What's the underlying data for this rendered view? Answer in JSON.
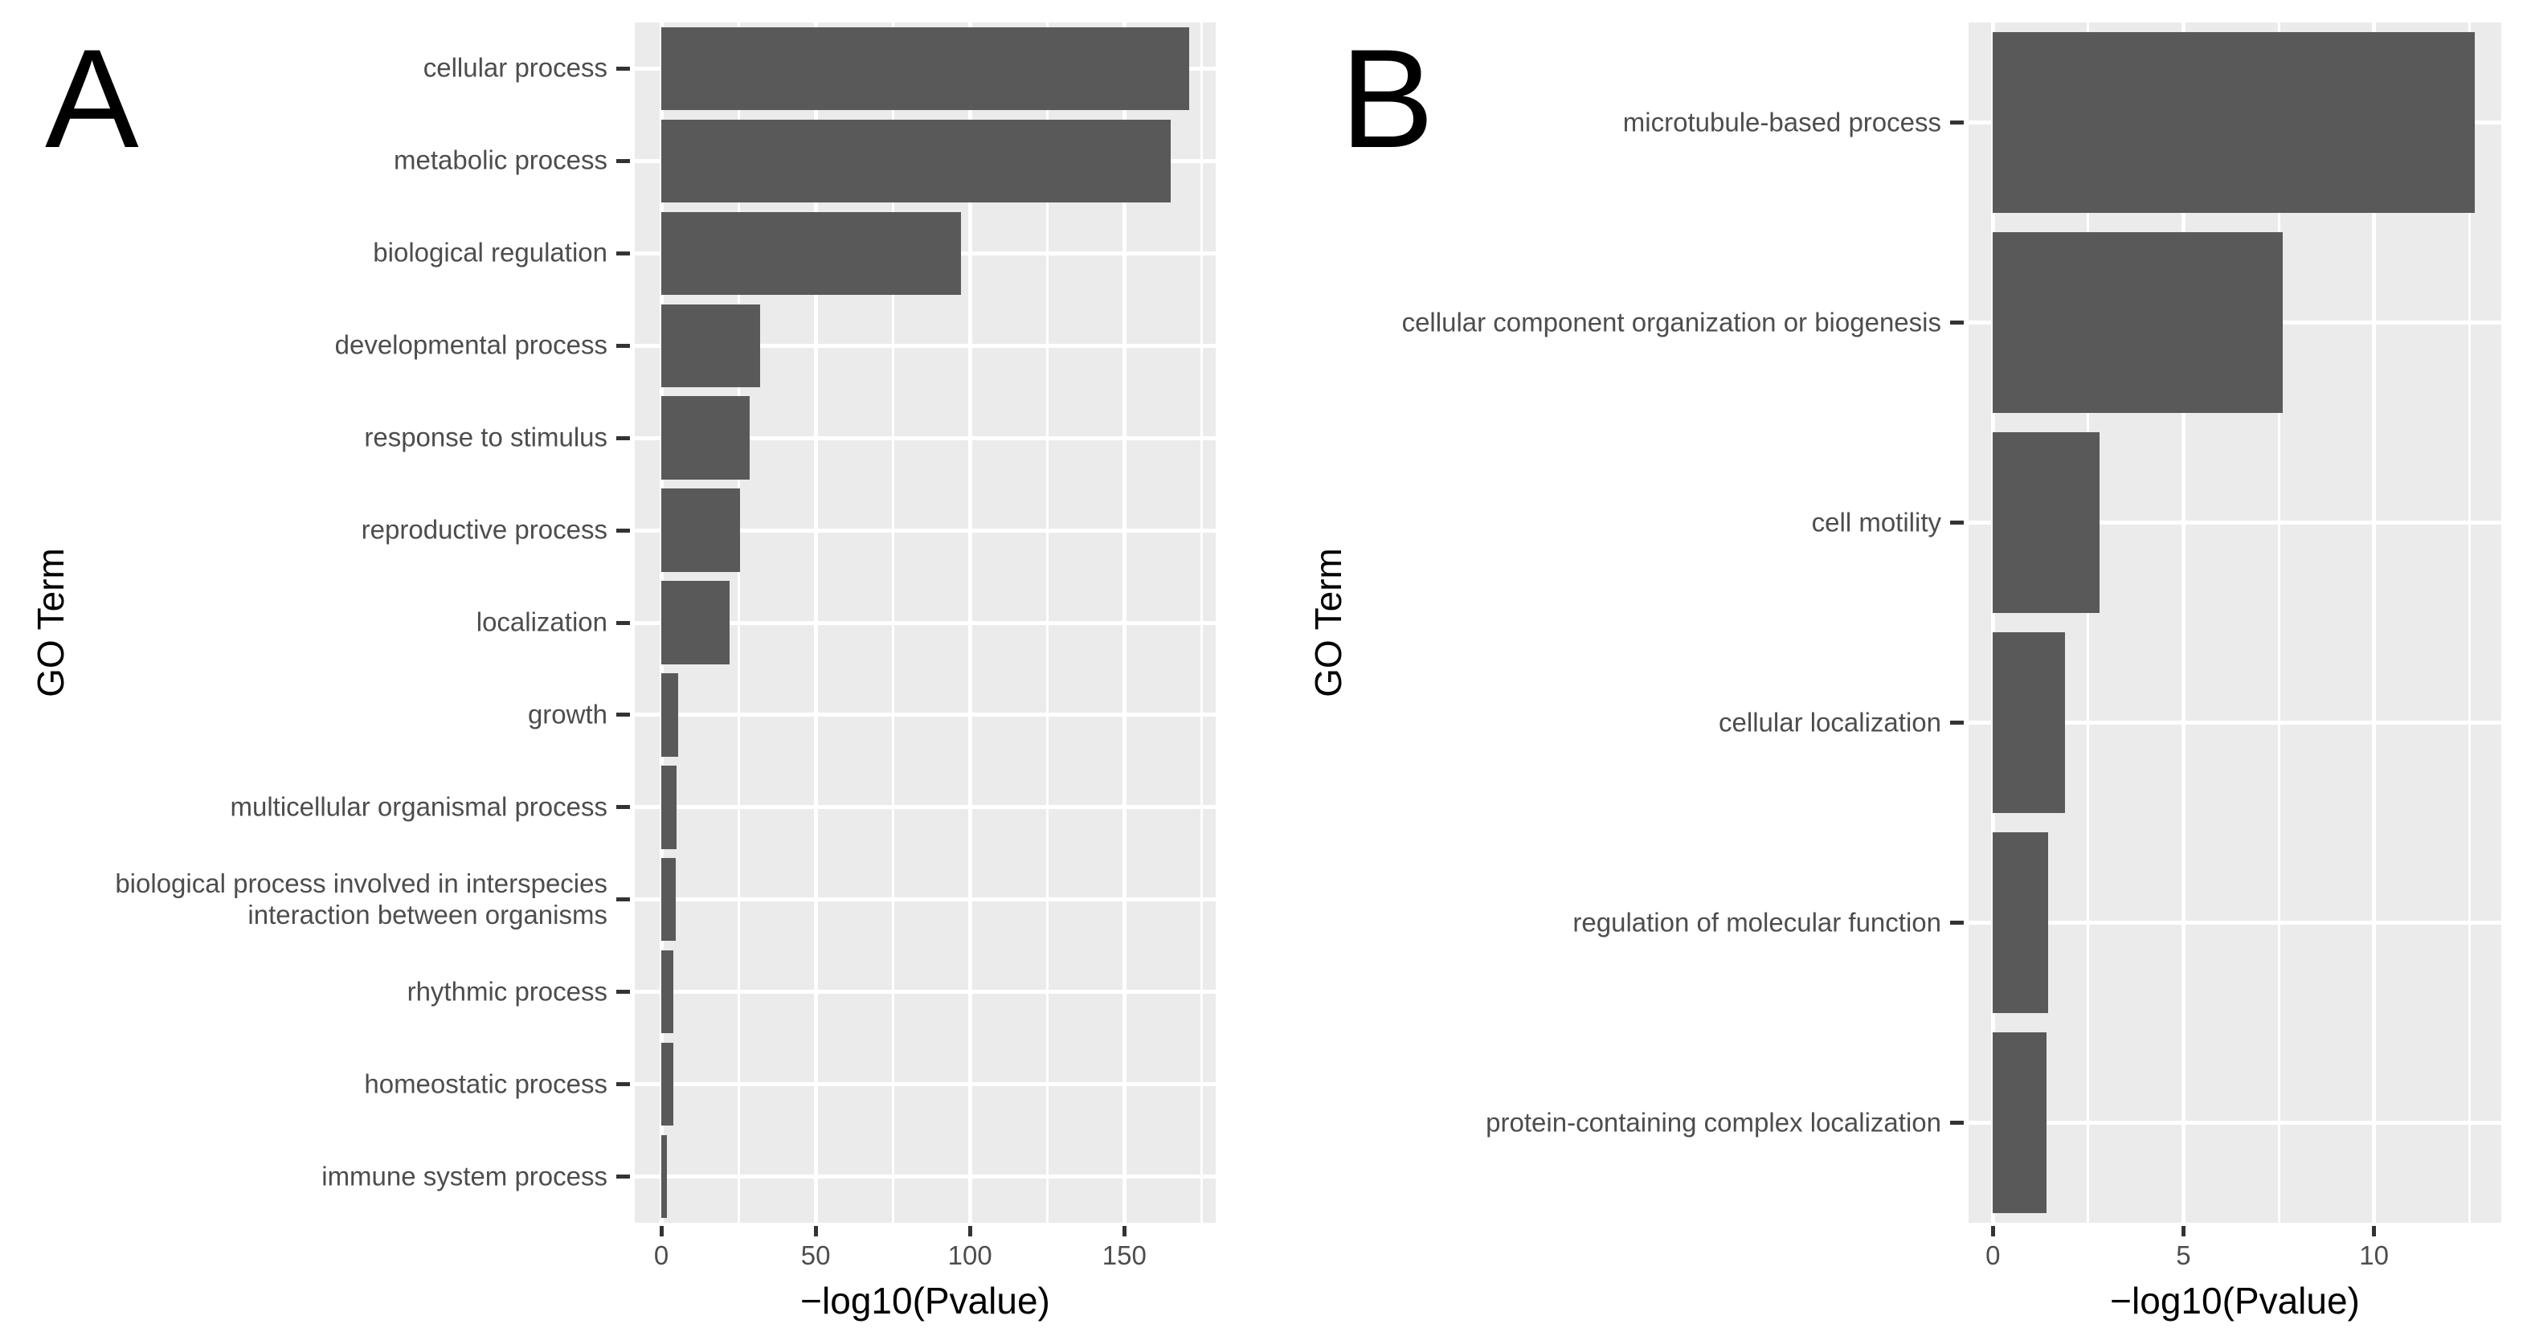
{
  "figure": {
    "background": "#FFFFFF",
    "description": "Two-panel GO term enrichment horizontal bar charts"
  },
  "colors": {
    "bar": "#595959",
    "panel_background": "#EBEBEB",
    "gridline": "#FFFFFF",
    "tick_mark": "#333333",
    "tick_text": "#4D4D4D",
    "axis_title_text": "#000000",
    "panel_letter_text": "#000000"
  },
  "chart_data": [
    {
      "type": "bar",
      "orientation": "horizontal",
      "panel_label": "A",
      "title": "",
      "xlabel": "−log10(Pvalue)",
      "ylabel": "GO Term",
      "categories": [
        "cellular process",
        "metabolic process",
        "biological regulation",
        "developmental process",
        "response to stimulus",
        "reproductive process",
        "localization",
        "growth",
        "multicellular organismal process",
        "biological process involved in interspecies interaction between organisms",
        "rhythmic process",
        "homeostatic process",
        "immune system process"
      ],
      "values": [
        171,
        165,
        97,
        32,
        28.5,
        25.5,
        22,
        5.5,
        5.0,
        4.8,
        4.0,
        3.9,
        1.7
      ],
      "x_ticks": [
        0,
        50,
        100,
        150
      ],
      "x_tick_labels": [
        "0",
        "50",
        "100",
        "150"
      ],
      "x_minor_ticks": [
        25,
        75,
        125,
        175
      ],
      "xlim": [
        -8.6,
        179.6
      ],
      "grid": "white major and minor gridlines on gray panel",
      "legend_position": "none",
      "bar_color": "#595959",
      "panel_bg": "#EBEBEB"
    },
    {
      "type": "bar",
      "orientation": "horizontal",
      "panel_label": "B",
      "title": "",
      "xlabel": "−log10(Pvalue)",
      "ylabel": "GO Term",
      "categories": [
        "microtubule-based process",
        "cellular component organization or biogenesis",
        "cell motility",
        "cellular localization",
        "regulation of molecular function",
        "protein-containing complex localization"
      ],
      "values": [
        12.65,
        7.6,
        2.8,
        1.9,
        1.45,
        1.4
      ],
      "x_ticks": [
        0,
        5,
        10
      ],
      "x_tick_labels": [
        "0",
        "5",
        "10"
      ],
      "x_minor_ticks": [
        2.5,
        7.5,
        12.5
      ],
      "xlim": [
        -0.64,
        13.34
      ],
      "grid": "white major and minor gridlines on gray panel",
      "legend_position": "none",
      "bar_color": "#595959",
      "panel_bg": "#EBEBEB"
    }
  ]
}
